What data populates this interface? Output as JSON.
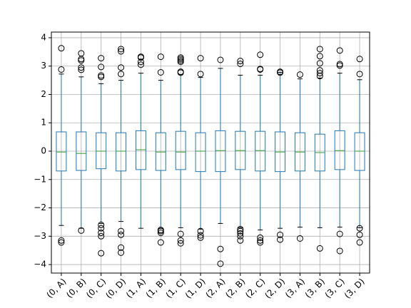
{
  "chart_data": {
    "type": "box",
    "categories": [
      "(0, A)",
      "(0, B)",
      "(0, C)",
      "(0, D)",
      "(1, A)",
      "(1, B)",
      "(1, C)",
      "(1, D)",
      "(2, A)",
      "(2, B)",
      "(2, C)",
      "(2, D)",
      "(3, A)",
      "(3, B)",
      "(3, C)",
      "(3, D)"
    ],
    "box_color": "#1f77b4",
    "median_color": "#2ca02c",
    "grid": true,
    "ylim": [
      -4.3,
      4.2
    ],
    "yticks": [
      {
        "value": -4,
        "label": "−4"
      },
      {
        "value": -3,
        "label": "−3"
      },
      {
        "value": -2,
        "label": "−2"
      },
      {
        "value": -1,
        "label": "−1"
      },
      0,
      1,
      2,
      3,
      4
    ],
    "boxes": [
      {
        "whislo": -2.62,
        "q1": -0.7,
        "med": -0.03,
        "q3": 0.68,
        "whishi": 2.72,
        "fliers": [
          3.63,
          2.88,
          -3.15,
          -3.22
        ]
      },
      {
        "whislo": -2.72,
        "q1": -0.68,
        "med": -0.08,
        "q3": 0.68,
        "whishi": 2.62,
        "fliers": [
          3.45,
          3.25,
          3.2,
          2.95,
          2.87,
          -2.8
        ]
      },
      {
        "whislo": -2.55,
        "q1": -0.62,
        "med": 0.0,
        "q3": 0.65,
        "whishi": 2.38,
        "fliers": [
          3.28,
          2.97,
          2.67,
          2.62,
          -2.6,
          -2.72,
          -2.88,
          -3.0,
          -3.6
        ]
      },
      {
        "whislo": -2.48,
        "q1": -0.7,
        "med": 0.0,
        "q3": 0.65,
        "whishi": 2.5,
        "fliers": [
          3.6,
          3.52,
          2.95,
          2.72,
          -2.82,
          -2.95,
          -3.4,
          -3.58
        ]
      },
      {
        "whislo": -2.72,
        "q1": -0.65,
        "med": 0.05,
        "q3": 0.72,
        "whishi": 2.75,
        "fliers": [
          3.33,
          3.3,
          3.15,
          3.05
        ]
      },
      {
        "whislo": -2.72,
        "q1": -0.68,
        "med": -0.03,
        "q3": 0.65,
        "whishi": 2.5,
        "fliers": [
          3.33,
          2.78,
          -2.78,
          -2.82,
          -2.88,
          -3.22
        ]
      },
      {
        "whislo": -2.7,
        "q1": -0.65,
        "med": -0.03,
        "q3": 0.7,
        "whishi": 2.7,
        "fliers": [
          3.3,
          3.25,
          3.2,
          3.15,
          2.8,
          2.77,
          -2.92,
          -3.15,
          -3.25
        ]
      },
      {
        "whislo": -2.75,
        "q1": -0.72,
        "med": 0.0,
        "q3": 0.65,
        "whishi": 2.6,
        "fliers": [
          3.28,
          2.72,
          -2.82,
          -2.97,
          -3.05
        ]
      },
      {
        "whislo": -2.55,
        "q1": -0.72,
        "med": 0.02,
        "q3": 0.72,
        "whishi": 2.92,
        "fliers": [
          3.22,
          -3.45,
          -3.97
        ]
      },
      {
        "whislo": -2.7,
        "q1": -0.65,
        "med": 0.02,
        "q3": 0.7,
        "whishi": 2.68,
        "fliers": [
          3.18,
          3.08,
          -2.75,
          -2.82,
          -2.9,
          -3.0,
          -3.15
        ]
      },
      {
        "whislo": -2.78,
        "q1": -0.7,
        "med": 0.02,
        "q3": 0.7,
        "whishi": 2.68,
        "fliers": [
          3.4,
          2.9,
          2.88,
          -3.05,
          -3.15,
          -3.22
        ]
      },
      {
        "whislo": -2.72,
        "q1": -0.72,
        "med": -0.03,
        "q3": 0.68,
        "whishi": 2.78,
        "fliers": [
          2.8,
          2.77,
          -2.95,
          -3.12
        ]
      },
      {
        "whislo": -2.68,
        "q1": -0.7,
        "med": -0.03,
        "q3": 0.65,
        "whishi": 2.55,
        "fliers": [
          2.7,
          -3.08
        ]
      },
      {
        "whislo": -2.7,
        "q1": -0.7,
        "med": -0.05,
        "q3": 0.6,
        "whishi": 2.58,
        "fliers": [
          3.6,
          3.35,
          3.1,
          2.85,
          2.75,
          2.65,
          -3.43
        ]
      },
      {
        "whislo": -2.68,
        "q1": -0.65,
        "med": 0.02,
        "q3": 0.72,
        "whishi": 2.75,
        "fliers": [
          3.55,
          3.07,
          3.02,
          -2.92,
          -3.52
        ]
      },
      {
        "whislo": -2.7,
        "q1": -0.68,
        "med": 0.0,
        "q3": 0.65,
        "whishi": 2.52,
        "fliers": [
          3.25,
          2.72,
          -2.72,
          -2.95,
          -3.22
        ]
      }
    ]
  }
}
